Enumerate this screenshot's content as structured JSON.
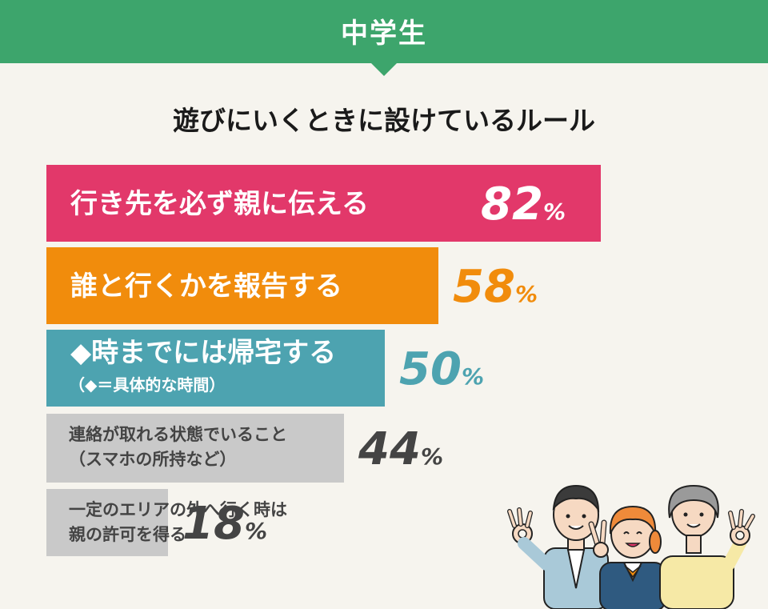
{
  "header": {
    "title": "中学生",
    "color": "#3da56c"
  },
  "chart_data": {
    "type": "bar",
    "orientation": "horizontal",
    "title": "遊びにいくときに設けているルール",
    "xlim": [
      0,
      100
    ],
    "unit": "%",
    "items": [
      {
        "label": "行き先を必ず親に伝える",
        "sublabel": "",
        "value": 82,
        "color": "#e2386a",
        "text_color": "#ffffff",
        "value_color": "#ffffff"
      },
      {
        "label": "誰と行くかを報告する",
        "sublabel": "",
        "value": 58,
        "color": "#f18c0c",
        "text_color": "#ffffff",
        "value_color": "#f18c0c"
      },
      {
        "label": "◆時までには帰宅する",
        "sublabel": "（◆＝具体的な時間）",
        "value": 50,
        "color": "#4da3b0",
        "text_color": "#ffffff",
        "value_color": "#4da3b0"
      },
      {
        "label": "連絡が取れる状態でいること",
        "sublabel": "（スマホの所持など）",
        "value": 44,
        "color": "#c9c9c9",
        "text_color": "#444444",
        "value_color": "#444444"
      },
      {
        "label": "一定のエリアの外へ行く時は",
        "sublabel": "親の許可を得る",
        "value": 18,
        "color": "#c9c9c9",
        "text_color": "#444444",
        "value_color": "#444444"
      }
    ]
  },
  "illustration": {
    "icon": "three-students-ok-sign-illustration"
  }
}
